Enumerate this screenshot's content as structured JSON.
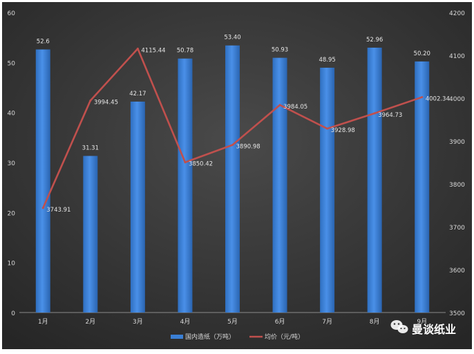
{
  "chart_data": {
    "type": "bar",
    "title": "",
    "categories": [
      "1月",
      "2月",
      "3月",
      "4月",
      "5月",
      "6月",
      "7月",
      "8月",
      "9月"
    ],
    "series": [
      {
        "name": "国内造纸（万吨）",
        "type": "bar",
        "axis": "left",
        "values": [
          52.6,
          31.31,
          42.17,
          50.78,
          53.4,
          50.93,
          48.95,
          52.96,
          50.2
        ],
        "labels": [
          "52.6",
          "31.31",
          "42.17",
          "50.78",
          "53.40",
          "50.93",
          "48.95",
          "52.96",
          "50.20"
        ],
        "color": "#3a7fd5"
      },
      {
        "name": "均价（元/吨）",
        "type": "line",
        "axis": "right",
        "values": [
          3743.91,
          3994.45,
          4115.44,
          3850.42,
          3890.98,
          3984.05,
          3928.98,
          3964.73,
          4002.34
        ],
        "labels": [
          "3743.91",
          "3994.45",
          "4115.44",
          "3850.42",
          "3890.98",
          "3984.05",
          "3928.98",
          "3964.73",
          "4002.34"
        ],
        "color": "#c0504d"
      }
    ],
    "y_left": {
      "min": 0,
      "max": 60,
      "ticks": [
        0,
        10,
        20,
        30,
        40,
        50,
        60
      ]
    },
    "y_right": {
      "min": 3500,
      "max": 4200,
      "ticks": [
        3500,
        3600,
        3700,
        3800,
        3900,
        4000,
        4100,
        4200
      ]
    },
    "grid": false,
    "legend_position": "bottom",
    "background": "#3a3a3a"
  },
  "watermark": {
    "text": "曼谈纸业"
  }
}
